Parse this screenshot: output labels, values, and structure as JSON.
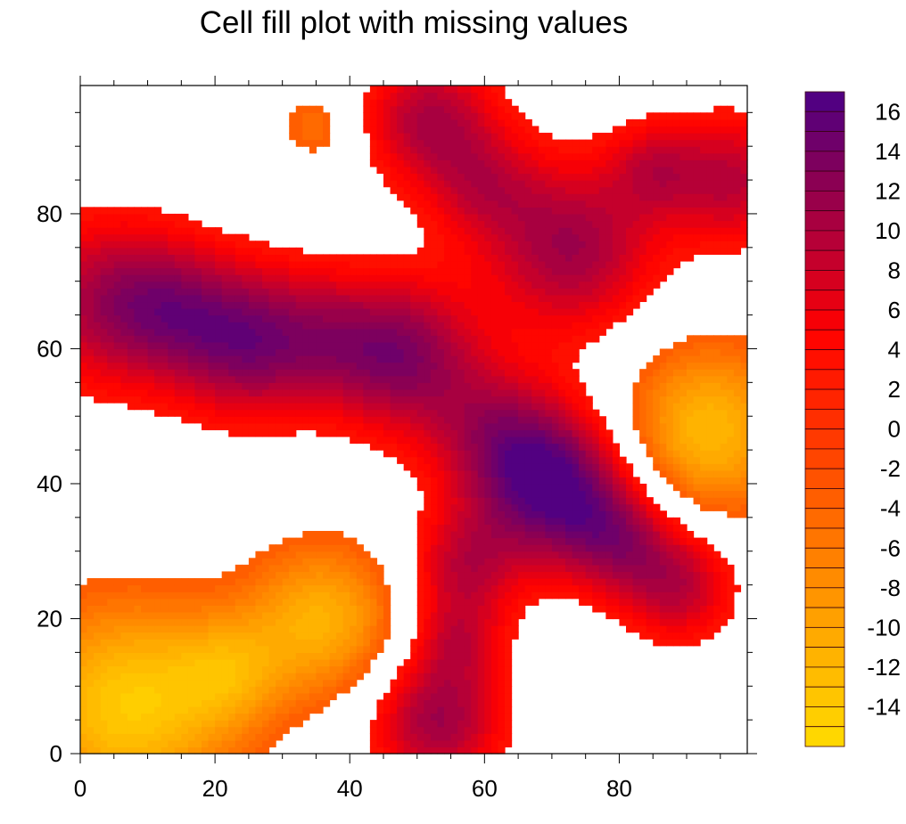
{
  "chart_data": {
    "type": "heatmap",
    "title": "Cell fill plot with missing values",
    "xlabel": "",
    "ylabel": "",
    "xlim": [
      0,
      99
    ],
    "ylim": [
      0,
      99
    ],
    "x_ticks": [
      0,
      20,
      40,
      60,
      80
    ],
    "y_ticks": [
      0,
      20,
      40,
      60,
      80
    ],
    "grid": false,
    "legend": "right colorbar",
    "colorbar": {
      "levels_min": -15,
      "levels_max": 16,
      "levels_step": 1,
      "labels": [
        "16",
        "14",
        "12",
        "10",
        "8",
        "6",
        "4",
        "2",
        "0",
        "-2",
        "-4",
        "-6",
        "-8",
        "-10",
        "-12",
        "-14"
      ],
      "color_anchors": [
        {
          "value": 17,
          "color": "#4b0087"
        },
        {
          "value": 13,
          "color": "#840058"
        },
        {
          "value": 9,
          "color": "#bd0032"
        },
        {
          "value": 5,
          "color": "#ff0000"
        },
        {
          "value": 0,
          "color": "#ff3300"
        },
        {
          "value": -5,
          "color": "#ff7000"
        },
        {
          "value": -10,
          "color": "#ffa500"
        },
        {
          "value": -16,
          "color": "#ffdc00"
        }
      ]
    },
    "missing_threshold_abs": 3,
    "field_model": [
      {
        "x": 70,
        "y": 40,
        "amp": 16,
        "sigma": 8
      },
      {
        "x": 80,
        "y": 32,
        "amp": 9,
        "sigma": 6
      },
      {
        "x": 89,
        "y": 25,
        "amp": 9,
        "sigma": 6
      },
      {
        "x": 61,
        "y": 48,
        "amp": 7,
        "sigma": 7
      },
      {
        "x": 73,
        "y": 75,
        "amp": 11,
        "sigma": 9
      },
      {
        "x": 48,
        "y": 59,
        "amp": 12,
        "sigma": 8
      },
      {
        "x": 25,
        "y": 61,
        "amp": 12,
        "sigma": 8
      },
      {
        "x": 4,
        "y": 67,
        "amp": 10,
        "sigma": 9
      },
      {
        "x": 14,
        "y": 66,
        "amp": 6,
        "sigma": 7
      },
      {
        "x": 37,
        "y": 62,
        "amp": 5,
        "sigma": 7
      },
      {
        "x": 52,
        "y": 94,
        "amp": 10,
        "sigma": 7
      },
      {
        "x": 60,
        "y": 84,
        "amp": 6,
        "sigma": 6
      },
      {
        "x": 97,
        "y": 85,
        "amp": 9,
        "sigma": 7
      },
      {
        "x": 85,
        "y": 87,
        "amp": 6,
        "sigma": 5
      },
      {
        "x": 53,
        "y": 5,
        "amp": 11,
        "sigma": 7
      },
      {
        "x": 56,
        "y": 17,
        "amp": 6,
        "sigma": 5
      },
      {
        "x": 57,
        "y": 28,
        "amp": 8,
        "sigma": 6
      },
      {
        "x": 7,
        "y": 7,
        "amp": -14,
        "sigma": 11
      },
      {
        "x": 36,
        "y": 20,
        "amp": -11,
        "sigma": 8
      },
      {
        "x": 22,
        "y": 12,
        "amp": -7,
        "sigma": 6
      },
      {
        "x": 93,
        "y": 48,
        "amp": -12,
        "sigma": 9
      },
      {
        "x": 35,
        "y": 93,
        "amp": -5,
        "sigma": 4
      },
      {
        "x": 72,
        "y": 20,
        "amp": -3.6,
        "sigma": 1.2
      }
    ]
  }
}
